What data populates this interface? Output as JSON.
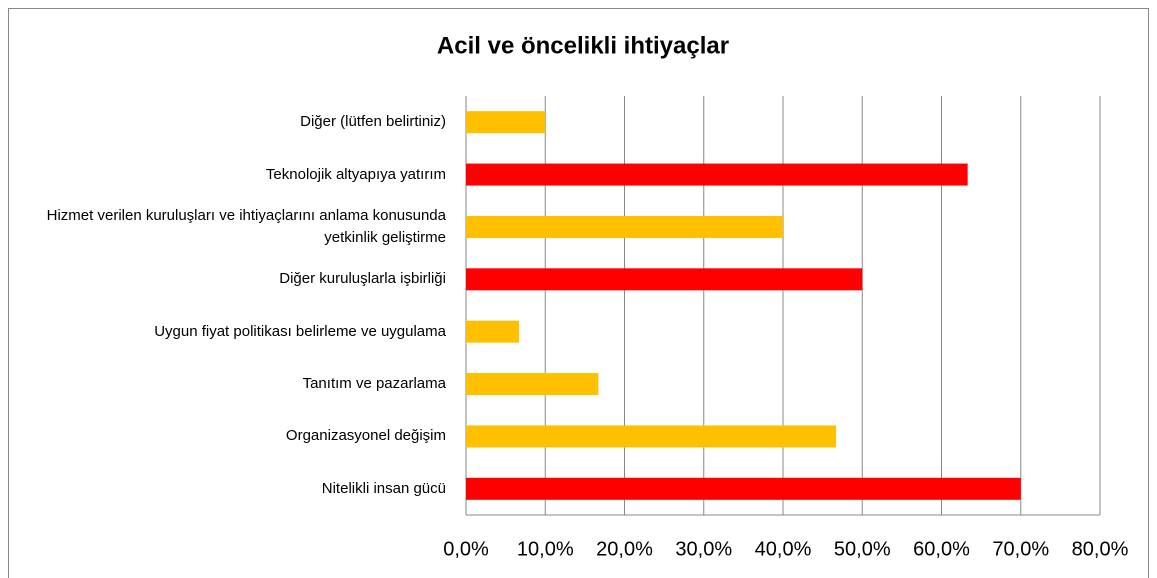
{
  "chart_data": {
    "type": "barh",
    "title": "Acil ve öncelikli ihtiyaçlar",
    "categories": [
      "Diğer (lütfen belirtiniz)",
      "Teknolojik altyapıya yatırım",
      "Hizmet verilen kuruluşları ve ihtiyaçlarını anlama konusunda yetkinlik geliştirme",
      "Diğer kuruluşlarla işbirliği",
      "Uygun fiyat politikası belirleme ve uygulama",
      "Tanıtım ve pazarlama",
      "Organizasyonel değişim",
      "Nitelikli insan gücü"
    ],
    "values": [
      10.0,
      63.3,
      40.0,
      50.0,
      6.7,
      16.7,
      46.7,
      70.0
    ],
    "colors": [
      "#FFC000",
      "#FF0000",
      "#FFC000",
      "#FF0000",
      "#FFC000",
      "#FFC000",
      "#FFC000",
      "#FF0000"
    ],
    "xlim": [
      0,
      80
    ],
    "xticks": [
      {
        "value": 0,
        "label": "0,0%"
      },
      {
        "value": 10,
        "label": "10,0%"
      },
      {
        "value": 20,
        "label": "20,0%"
      },
      {
        "value": 30,
        "label": "30,0%"
      },
      {
        "value": 40,
        "label": "40,0%"
      },
      {
        "value": 50,
        "label": "50,0%"
      },
      {
        "value": 60,
        "label": "60,0%"
      },
      {
        "value": 70,
        "label": "70,0%"
      },
      {
        "value": 80,
        "label": "80,0%"
      }
    ],
    "grid": true
  }
}
